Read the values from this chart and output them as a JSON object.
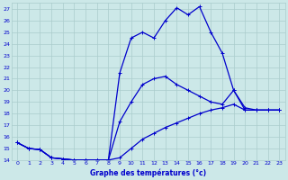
{
  "title": "Graphe des températures (°c)",
  "bg_color": "#cce8e8",
  "grid_color": "#aacccc",
  "line_color": "#0000cc",
  "xlim": [
    -0.5,
    23.5
  ],
  "ylim": [
    14,
    27.5
  ],
  "xticks": [
    0,
    1,
    2,
    3,
    4,
    5,
    6,
    7,
    8,
    9,
    10,
    11,
    12,
    13,
    14,
    15,
    16,
    17,
    18,
    19,
    20,
    21,
    22,
    23
  ],
  "yticks": [
    14,
    15,
    16,
    17,
    18,
    19,
    20,
    21,
    22,
    23,
    24,
    25,
    26,
    27
  ],
  "line_top_x": [
    0,
    1,
    2,
    3,
    4,
    5,
    6,
    7,
    8,
    9,
    10,
    11,
    12,
    13,
    14,
    15,
    16,
    17,
    18,
    19,
    20,
    21,
    22,
    23
  ],
  "line_top_y": [
    15.5,
    15.0,
    14.9,
    14.2,
    14.1,
    14.0,
    14.0,
    14.0,
    14.0,
    21.5,
    24.5,
    25.0,
    24.5,
    26.0,
    27.1,
    26.5,
    27.2,
    25.0,
    23.2,
    20.0,
    18.3,
    18.3,
    18.3,
    18.3
  ],
  "line_mid_x": [
    0,
    1,
    2,
    3,
    4,
    5,
    6,
    7,
    8,
    9,
    10,
    11,
    12,
    13,
    14,
    15,
    16,
    17,
    18,
    19,
    20,
    21,
    22,
    23
  ],
  "line_mid_y": [
    15.5,
    15.0,
    14.9,
    14.2,
    14.1,
    14.0,
    14.0,
    14.0,
    14.0,
    17.3,
    19.0,
    20.5,
    21.0,
    21.2,
    20.5,
    20.0,
    19.5,
    19.0,
    18.8,
    20.0,
    18.5,
    18.3,
    18.3,
    18.3
  ],
  "line_bot_x": [
    0,
    1,
    2,
    3,
    4,
    5,
    6,
    7,
    8,
    9,
    10,
    11,
    12,
    13,
    14,
    15,
    16,
    17,
    18,
    19,
    20,
    21,
    22,
    23
  ],
  "line_bot_y": [
    15.5,
    15.0,
    14.9,
    14.2,
    14.1,
    14.0,
    14.0,
    14.0,
    14.0,
    14.2,
    15.0,
    15.8,
    16.3,
    16.8,
    17.2,
    17.6,
    18.0,
    18.3,
    18.5,
    18.8,
    18.3,
    18.3,
    18.3,
    18.3
  ],
  "marker": "+",
  "marker_top_idx": [
    0,
    1,
    2,
    3,
    4,
    5,
    6,
    7,
    8,
    9,
    10,
    11,
    12,
    13,
    14,
    15,
    16,
    17,
    18,
    19,
    20,
    21,
    22,
    23
  ],
  "marker_mid_idx": [
    0,
    1,
    2,
    3,
    4,
    5,
    6,
    7,
    8,
    9,
    10,
    11,
    12,
    13,
    14,
    15,
    16,
    17,
    18,
    19,
    20,
    21,
    22,
    23
  ],
  "marker_bot_idx": [
    0,
    1,
    2,
    3,
    4,
    5,
    6,
    7,
    8,
    9,
    10,
    11,
    12,
    13,
    14,
    15,
    16,
    17,
    18,
    19,
    20,
    21,
    22,
    23
  ]
}
